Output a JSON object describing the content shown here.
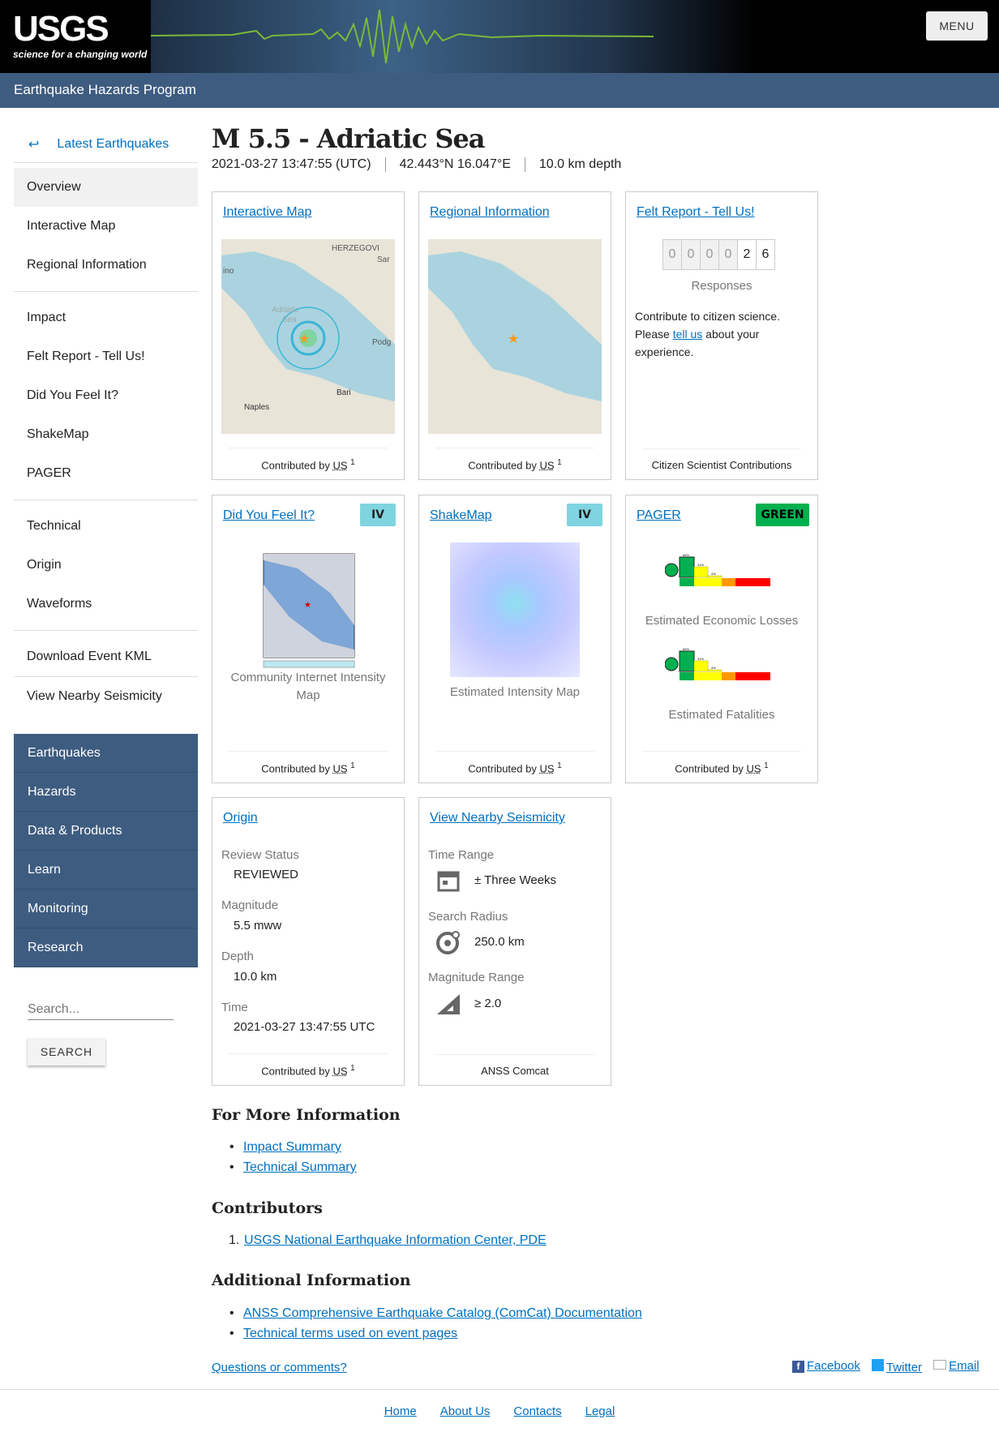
{
  "header": {
    "logo_text": "USGS",
    "logo_tagline": "science for a changing world",
    "menu_label": "MENU",
    "program": "Earthquake Hazards Program"
  },
  "sidebar": {
    "back_label": "Latest Earthquakes",
    "back_icon": "return-arrow-icon",
    "groups": [
      [
        "Overview",
        "Interactive Map",
        "Regional Information"
      ],
      [
        "Impact",
        "Felt Report - Tell Us!",
        "Did You Feel It?",
        "ShakeMap",
        "PAGER"
      ],
      [
        "Technical",
        "Origin",
        "Waveforms"
      ],
      [
        "Download Event KML"
      ],
      [
        "View Nearby Seismicity"
      ]
    ],
    "nav": [
      "Earthquakes",
      "Hazards",
      "Data & Products",
      "Learn",
      "Monitoring",
      "Research"
    ],
    "search_placeholder": "Search...",
    "search_button": "SEARCH"
  },
  "event": {
    "title": "M 5.5 - Adriatic Sea",
    "time": "2021-03-27 13:47:55 (UTC)",
    "location": "42.443°N 16.047°E",
    "depth": "10.0 km depth"
  },
  "cards": {
    "interactive_map": {
      "title": "Interactive Map",
      "footer": "Contributed by",
      "net": "US",
      "sup": "1",
      "labels": [
        "Adriatic",
        "Sea",
        "Bari",
        "Naples",
        "HERZEGOVI",
        "Sar",
        "ino",
        "Podg"
      ]
    },
    "regional": {
      "title": "Regional Information",
      "footer": "Contributed by",
      "net": "US",
      "sup": "1"
    },
    "felt": {
      "title": "Felt Report - Tell Us!",
      "digits": [
        "0",
        "0",
        "0",
        "0",
        "2",
        "6"
      ],
      "responses_label": "Responses",
      "text_before": "Contribute to citizen science. Please ",
      "link": "tell us",
      "text_after": " about your experience.",
      "footer": "Citizen Scientist Contributions"
    },
    "dyfi": {
      "title": "Did You Feel It?",
      "badge": "IV",
      "badge_color": "#7fd4e0",
      "caption": "Community Internet Intensity Map",
      "footer": "Contributed by",
      "net": "US",
      "sup": "1"
    },
    "shakemap": {
      "title": "ShakeMap",
      "badge": "IV",
      "badge_color": "#7fd4e0",
      "caption": "Estimated Intensity Map",
      "footer": "Contributed by",
      "net": "US",
      "sup": "1"
    },
    "pager": {
      "title": "PAGER",
      "badge": "GREEN",
      "badge_color": "#00b04f",
      "losses_caption": "Estimated Economic Losses",
      "fatalities_caption": "Estimated Fatalities",
      "histogram_percents": [
        "65%",
        "31%",
        "4%"
      ],
      "footer": "Contributed by",
      "net": "US",
      "sup": "1"
    },
    "origin": {
      "title": "Origin",
      "fields": [
        {
          "label": "Review Status",
          "value": "REVIEWED"
        },
        {
          "label": "Magnitude",
          "value": "5.5 mww"
        },
        {
          "label": "Depth",
          "value": "10.0 km"
        },
        {
          "label": "Time",
          "value": "2021-03-27 13:47:55 UTC"
        }
      ],
      "footer": "Contributed by",
      "net": "US",
      "sup": "1"
    },
    "nearby": {
      "title": "View Nearby Seismicity",
      "fields": [
        {
          "label": "Time Range",
          "value": "± Three Weeks",
          "icon": "calendar-icon"
        },
        {
          "label": "Search Radius",
          "value": "250.0 km",
          "icon": "radius-target-icon"
        },
        {
          "label": "Magnitude Range",
          "value": "≥ 2.0",
          "icon": "magnitude-ramp-icon"
        }
      ],
      "footer": "ANSS Comcat"
    }
  },
  "more_info": {
    "heading": "For More Information",
    "links": [
      "Impact Summary",
      "Technical Summary"
    ]
  },
  "contributors": {
    "heading": "Contributors",
    "items": [
      "USGS National Earthquake Information Center, PDE"
    ]
  },
  "additional": {
    "heading": "Additional Information",
    "links": [
      "ANSS Comprehensive Earthquake Catalog (ComCat) Documentation",
      "Technical terms used on event pages"
    ]
  },
  "feedback": {
    "questions": "Questions or comments?",
    "share": [
      "Facebook",
      "Twitter",
      "Email"
    ]
  },
  "footer": {
    "links": [
      "Home",
      "About Us",
      "Contacts",
      "Legal"
    ]
  }
}
